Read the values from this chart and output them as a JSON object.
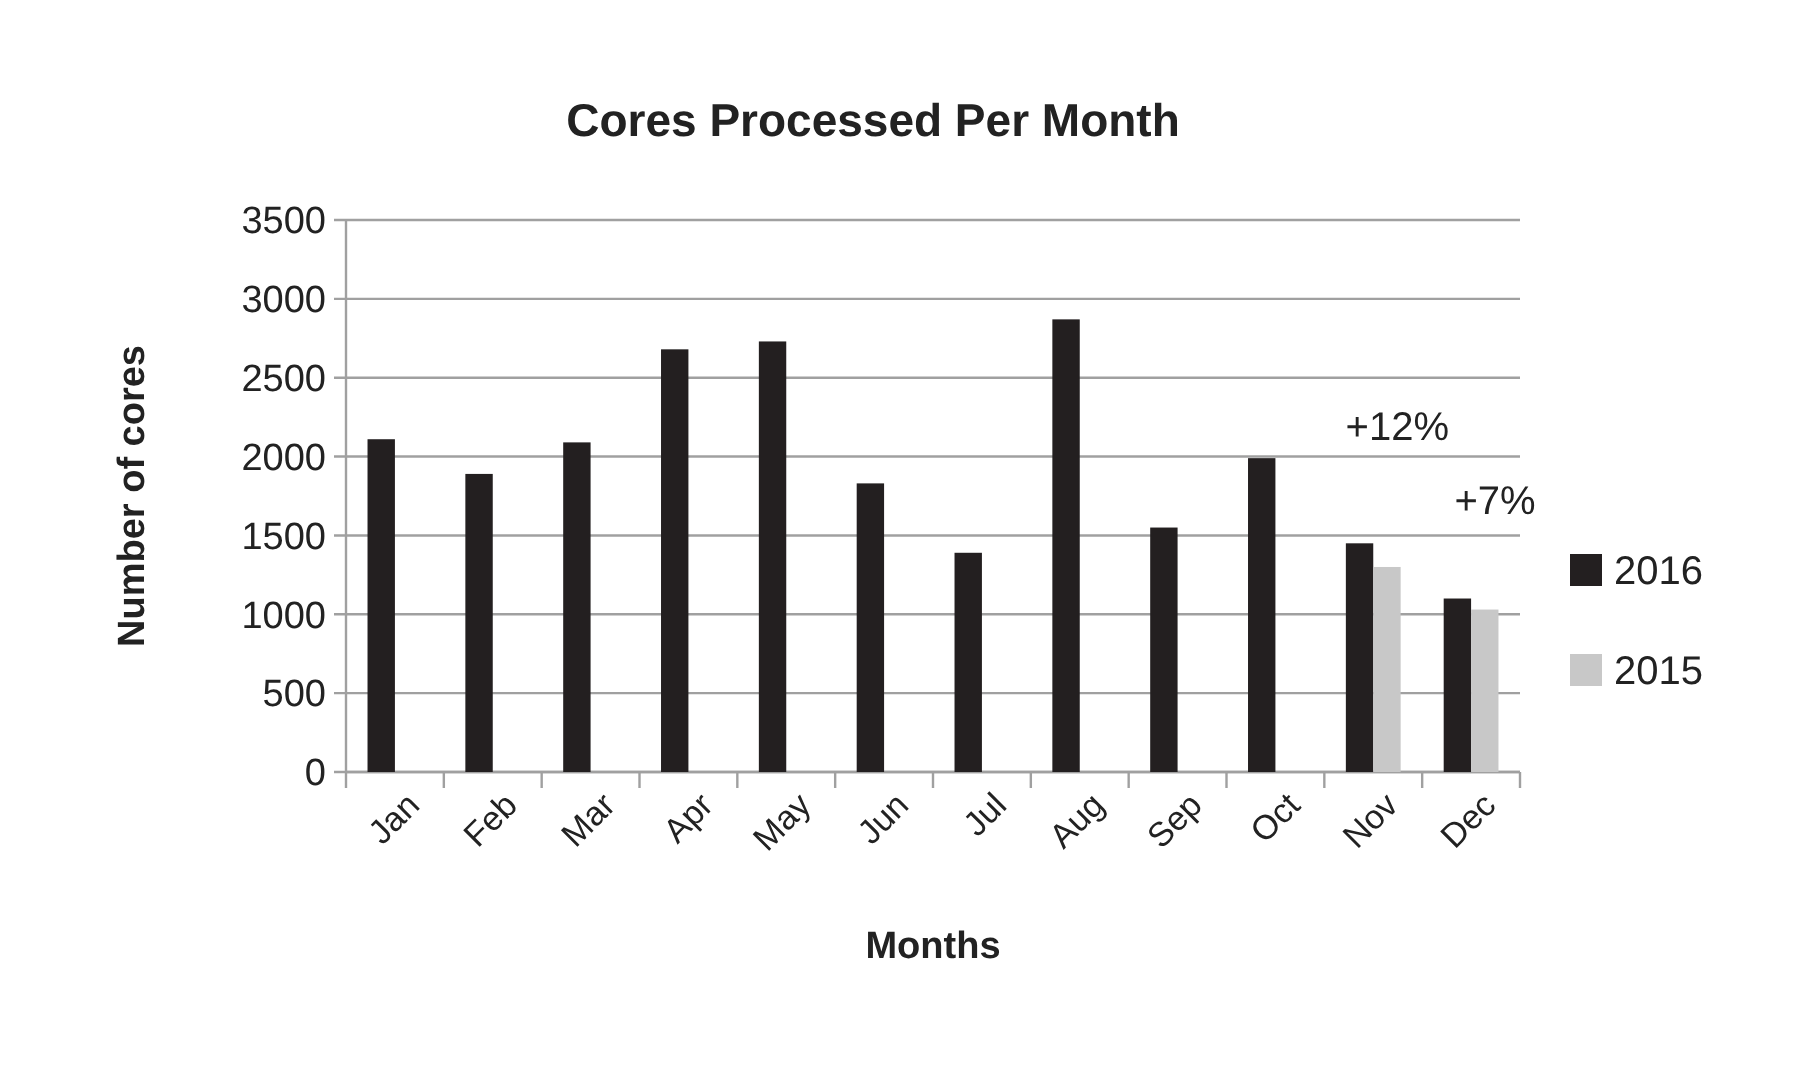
{
  "chart_data": {
    "type": "bar",
    "title": "Cores Processed Per Month",
    "xlabel": "Months",
    "ylabel": "Number of cores",
    "categories": [
      "Jan",
      "Feb",
      "Mar",
      "Apr",
      "May",
      "Jun",
      "Jul",
      "Aug",
      "Sep",
      "Oct",
      "Nov",
      "Dec"
    ],
    "series": [
      {
        "name": "2016",
        "color": "#231f20",
        "values": [
          2110,
          1890,
          2090,
          2680,
          2730,
          1830,
          1390,
          2870,
          1550,
          1990,
          1450,
          1100
        ]
      },
      {
        "name": "2015",
        "color": "#c8c8c8",
        "values": [
          null,
          null,
          null,
          null,
          null,
          null,
          null,
          null,
          null,
          null,
          1300,
          1030
        ]
      }
    ],
    "ylim": [
      0,
      3500
    ],
    "yticks": [
      0,
      500,
      1000,
      1500,
      2000,
      2500,
      3000,
      3500
    ],
    "grid": "y",
    "legend": "right",
    "annotations": [
      "+12%",
      "+7%"
    ]
  }
}
